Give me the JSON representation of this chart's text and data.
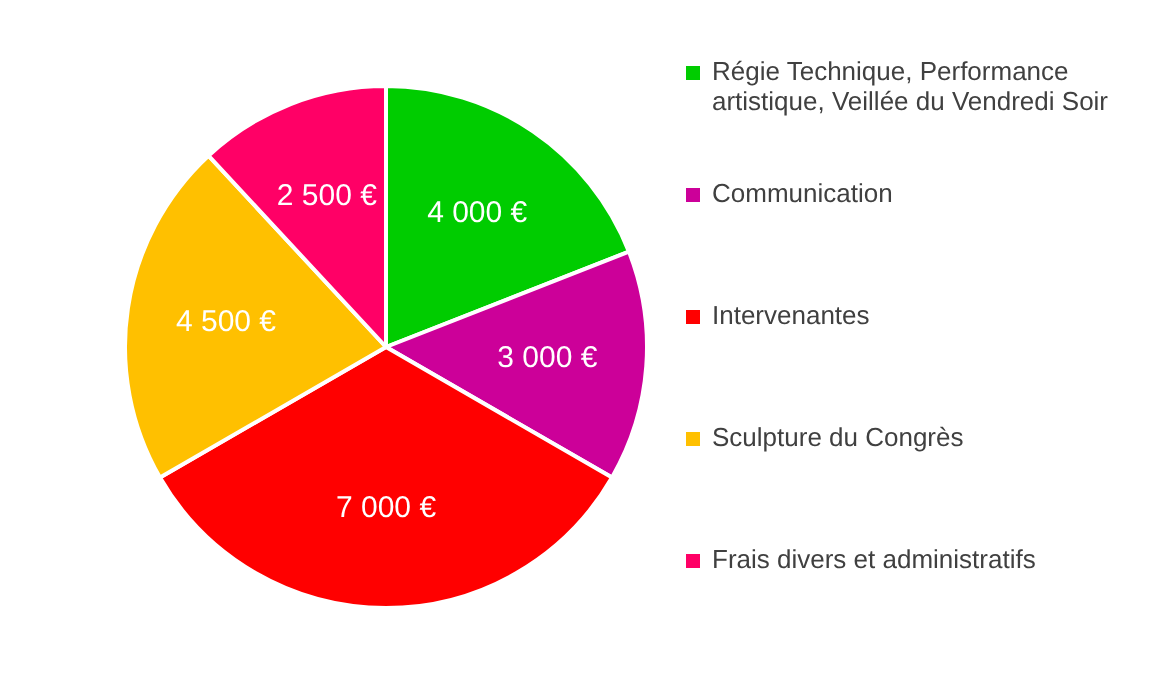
{
  "chart_data": {
    "type": "pie",
    "categories": [
      "Régie Technique, Performance artistique, Veillée du Vendredi Soir",
      "Communication",
      "Intervenantes",
      "Sculpture du Congrès",
      "Frais divers et administratifs"
    ],
    "values": [
      4000,
      3000,
      7000,
      4500,
      2500
    ],
    "colors": [
      "#00cc00",
      "#cc0099",
      "#ff0000",
      "#ffc000",
      "#ff0066"
    ],
    "value_labels": [
      "4 000 €",
      "3 000 €",
      "7 000 €",
      "4 500 €",
      "2 500 €"
    ],
    "legend": "right"
  }
}
